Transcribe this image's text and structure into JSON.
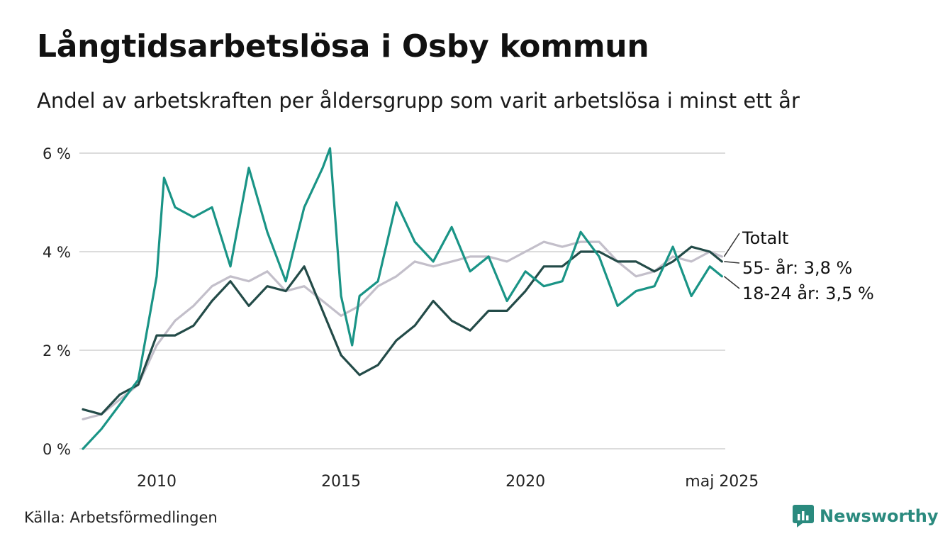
{
  "title": "Långtidsarbetslösa i Osby kommun",
  "subtitle": "Andel av arbetskraften per åldersgrupp som varit arbetslösa i minst ett år",
  "source": "Källa: Arbetsförmedlingen",
  "brand": "Newsworthy",
  "chart_data": {
    "type": "line",
    "ylim": [
      0,
      6.2
    ],
    "xlim": [
      2008.0,
      2025.42
    ],
    "y_ticks": [
      {
        "value": 0,
        "label": "0 %"
      },
      {
        "value": 2,
        "label": "2 %"
      },
      {
        "value": 4,
        "label": "4 %"
      },
      {
        "value": 6,
        "label": "6 %"
      }
    ],
    "x_ticks": [
      {
        "value": 2010,
        "label": "2010"
      },
      {
        "value": 2015,
        "label": "2015"
      },
      {
        "value": 2020,
        "label": "2020"
      },
      {
        "value": 2025.33,
        "label": "maj 2025"
      }
    ],
    "grid": true,
    "series": [
      {
        "name": "Totalt",
        "label": "Totalt",
        "color": "#c3bfca",
        "points": [
          [
            2008.0,
            0.6
          ],
          [
            2008.5,
            0.7
          ],
          [
            2009.0,
            1.0
          ],
          [
            2009.5,
            1.3
          ],
          [
            2010.0,
            2.1
          ],
          [
            2010.5,
            2.6
          ],
          [
            2011.0,
            2.9
          ],
          [
            2011.5,
            3.3
          ],
          [
            2012.0,
            3.5
          ],
          [
            2012.5,
            3.4
          ],
          [
            2013.0,
            3.6
          ],
          [
            2013.5,
            3.2
          ],
          [
            2014.0,
            3.3
          ],
          [
            2014.5,
            3.0
          ],
          [
            2015.0,
            2.7
          ],
          [
            2015.5,
            2.9
          ],
          [
            2016.0,
            3.3
          ],
          [
            2016.5,
            3.5
          ],
          [
            2017.0,
            3.8
          ],
          [
            2017.5,
            3.7
          ],
          [
            2018.0,
            3.8
          ],
          [
            2018.5,
            3.9
          ],
          [
            2019.0,
            3.9
          ],
          [
            2019.5,
            3.8
          ],
          [
            2020.0,
            4.0
          ],
          [
            2020.5,
            4.2
          ],
          [
            2021.0,
            4.1
          ],
          [
            2021.5,
            4.2
          ],
          [
            2022.0,
            4.2
          ],
          [
            2022.5,
            3.8
          ],
          [
            2023.0,
            3.5
          ],
          [
            2023.5,
            3.6
          ],
          [
            2024.0,
            3.9
          ],
          [
            2024.5,
            3.8
          ],
          [
            2025.0,
            4.0
          ],
          [
            2025.33,
            3.9
          ]
        ]
      },
      {
        "name": "55- år",
        "label": "55- år: 3,8 %",
        "color": "#234b48",
        "points": [
          [
            2008.0,
            0.8
          ],
          [
            2008.5,
            0.7
          ],
          [
            2009.0,
            1.1
          ],
          [
            2009.5,
            1.3
          ],
          [
            2010.0,
            2.3
          ],
          [
            2010.5,
            2.3
          ],
          [
            2011.0,
            2.5
          ],
          [
            2011.5,
            3.0
          ],
          [
            2012.0,
            3.4
          ],
          [
            2012.5,
            2.9
          ],
          [
            2013.0,
            3.3
          ],
          [
            2013.5,
            3.2
          ],
          [
            2014.0,
            3.7
          ],
          [
            2014.5,
            2.8
          ],
          [
            2015.0,
            1.9
          ],
          [
            2015.5,
            1.5
          ],
          [
            2016.0,
            1.7
          ],
          [
            2016.5,
            2.2
          ],
          [
            2017.0,
            2.5
          ],
          [
            2017.5,
            3.0
          ],
          [
            2018.0,
            2.6
          ],
          [
            2018.5,
            2.4
          ],
          [
            2019.0,
            2.8
          ],
          [
            2019.5,
            2.8
          ],
          [
            2020.0,
            3.2
          ],
          [
            2020.5,
            3.7
          ],
          [
            2021.0,
            3.7
          ],
          [
            2021.5,
            4.0
          ],
          [
            2022.0,
            4.0
          ],
          [
            2022.5,
            3.8
          ],
          [
            2023.0,
            3.8
          ],
          [
            2023.5,
            3.6
          ],
          [
            2024.0,
            3.8
          ],
          [
            2024.5,
            4.1
          ],
          [
            2025.0,
            4.0
          ],
          [
            2025.33,
            3.8
          ]
        ]
      },
      {
        "name": "18-24 år",
        "label": "18-24 år: 3,5 %",
        "color": "#1a9486",
        "points": [
          [
            2008.0,
            0.0
          ],
          [
            2008.5,
            0.4
          ],
          [
            2009.0,
            0.9
          ],
          [
            2009.5,
            1.4
          ],
          [
            2010.0,
            3.5
          ],
          [
            2010.2,
            5.5
          ],
          [
            2010.5,
            4.9
          ],
          [
            2011.0,
            4.7
          ],
          [
            2011.5,
            4.9
          ],
          [
            2012.0,
            3.7
          ],
          [
            2012.5,
            5.7
          ],
          [
            2013.0,
            4.4
          ],
          [
            2013.5,
            3.4
          ],
          [
            2014.0,
            4.9
          ],
          [
            2014.5,
            5.7
          ],
          [
            2014.7,
            6.1
          ],
          [
            2015.0,
            3.1
          ],
          [
            2015.3,
            2.1
          ],
          [
            2015.5,
            3.1
          ],
          [
            2016.0,
            3.4
          ],
          [
            2016.5,
            5.0
          ],
          [
            2017.0,
            4.2
          ],
          [
            2017.5,
            3.8
          ],
          [
            2018.0,
            4.5
          ],
          [
            2018.5,
            3.6
          ],
          [
            2019.0,
            3.9
          ],
          [
            2019.5,
            3.0
          ],
          [
            2020.0,
            3.6
          ],
          [
            2020.5,
            3.3
          ],
          [
            2021.0,
            3.4
          ],
          [
            2021.5,
            4.4
          ],
          [
            2022.0,
            3.9
          ],
          [
            2022.5,
            2.9
          ],
          [
            2023.0,
            3.2
          ],
          [
            2023.5,
            3.3
          ],
          [
            2024.0,
            4.1
          ],
          [
            2024.5,
            3.1
          ],
          [
            2025.0,
            3.7
          ],
          [
            2025.33,
            3.5
          ]
        ]
      }
    ]
  }
}
